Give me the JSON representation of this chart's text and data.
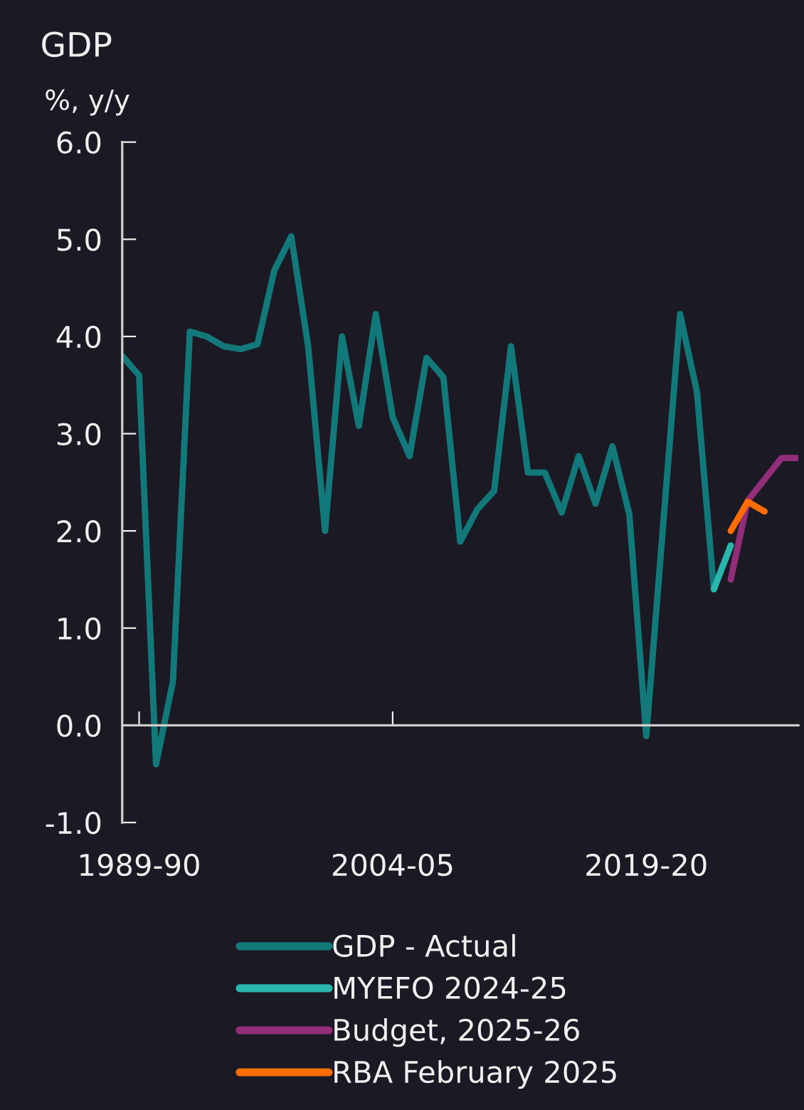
{
  "chart_data": {
    "type": "line",
    "title": "GDP",
    "ylabel": "%, y/y",
    "categories": [
      null,
      "1989-90",
      null,
      null,
      null,
      null,
      null,
      null,
      null,
      null,
      null,
      null,
      null,
      null,
      null,
      null,
      "2004-05",
      null,
      null,
      null,
      null,
      null,
      null,
      null,
      null,
      null,
      null,
      null,
      null,
      null,
      null,
      "2019-20",
      null,
      null,
      null,
      null,
      null,
      null,
      null,
      null,
      null
    ],
    "series": [
      {
        "name": "GDP - Actual",
        "color": "#12787a",
        "values": [
          3.8,
          3.6,
          -0.4,
          0.45,
          4.05,
          4.0,
          3.9,
          3.87,
          3.92,
          4.68,
          5.03,
          3.9,
          2.0,
          4.0,
          3.08,
          4.23,
          3.17,
          2.77,
          3.78,
          3.58,
          1.89,
          2.22,
          2.41,
          3.9,
          2.6,
          2.6,
          2.19,
          2.77,
          2.28,
          2.87,
          2.17,
          -0.11,
          2.06,
          4.23,
          3.43,
          1.4,
          null,
          null,
          null,
          null,
          null
        ]
      },
      {
        "name": "MYEFO 2024-25",
        "color": "#2ab5ad",
        "values": [
          null,
          null,
          null,
          null,
          null,
          null,
          null,
          null,
          null,
          null,
          null,
          null,
          null,
          null,
          null,
          null,
          null,
          null,
          null,
          null,
          null,
          null,
          null,
          null,
          null,
          null,
          null,
          null,
          null,
          null,
          null,
          null,
          null,
          null,
          null,
          1.4,
          1.85,
          null,
          null,
          null,
          null
        ]
      },
      {
        "name": "Budget, 2025-26",
        "color": "#922d7a",
        "values": [
          null,
          null,
          null,
          null,
          null,
          null,
          null,
          null,
          null,
          null,
          null,
          null,
          null,
          null,
          null,
          null,
          null,
          null,
          null,
          null,
          null,
          null,
          null,
          null,
          null,
          null,
          null,
          null,
          null,
          null,
          null,
          null,
          null,
          null,
          null,
          null,
          1.5,
          2.31,
          2.53,
          2.75,
          2.75
        ]
      },
      {
        "name": "RBA February 2025",
        "color": "#ff6d00",
        "values": [
          null,
          null,
          null,
          null,
          null,
          null,
          null,
          null,
          null,
          null,
          null,
          null,
          null,
          null,
          null,
          null,
          null,
          null,
          null,
          null,
          null,
          null,
          null,
          null,
          null,
          null,
          null,
          null,
          null,
          null,
          null,
          null,
          null,
          null,
          null,
          null,
          2.0,
          2.3,
          2.2,
          null,
          null
        ]
      }
    ],
    "ylim": [
      -1,
      6
    ],
    "yticks": [
      {
        "value": -1,
        "label": "-1.0"
      },
      {
        "value": 0,
        "label": "0.0"
      },
      {
        "value": 1,
        "label": "1.0"
      },
      {
        "value": 2,
        "label": "2.0"
      },
      {
        "value": 3,
        "label": "3.0"
      },
      {
        "value": 4,
        "label": "4.0"
      },
      {
        "value": 5,
        "label": "5.0"
      },
      {
        "value": 6,
        "label": "6.0"
      }
    ],
    "legend": "bottom",
    "marker": "none",
    "line_style": "solid"
  }
}
